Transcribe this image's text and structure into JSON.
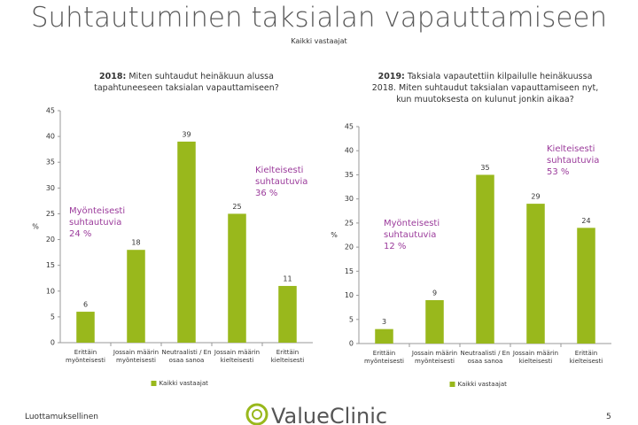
{
  "title": "Suhtautuminen taksialan vapauttamiseen",
  "subtitle": "Kaikki vastaajat",
  "footer": {
    "left": "Luottamuksellinen",
    "logo": "ValueClinic",
    "page": "5"
  },
  "chart_data": [
    {
      "type": "bar",
      "title_lead": "2018:",
      "title": "Miten suhtaudut heinäkuun alussa tapahtuneeseen taksialan vapauttamiseen?",
      "y_label": "%",
      "categories": [
        "Erittäin myönteisesti",
        "Jossain määrin myönteisesti",
        "Neutraalisti / En osaa sanoa",
        "Jossain määrin kielteisesti",
        "Erittäin kielteisesti"
      ],
      "series": [
        {
          "name": "Kaikki vastaajat",
          "color": "#99b81c",
          "values": [
            6,
            18,
            39,
            25,
            11
          ]
        }
      ],
      "ylim": [
        0,
        45
      ],
      "yticks": [
        0,
        5,
        10,
        15,
        20,
        25,
        30,
        35,
        40,
        45
      ],
      "annotations": [
        {
          "text": "Myönteisesti suhtautuvia 24 %"
        },
        {
          "text": "Kielteisesti suhtautuvia 36 %"
        }
      ],
      "annotation_color": "#9b3b9b"
    },
    {
      "type": "bar",
      "title_lead": "2019:",
      "title": "Taksiala vapautettiin kilpailulle heinäkuussa 2018. Miten suhtaudut taksialan vapauttamiseen nyt, kun muutoksesta on kulunut jonkin aikaa?",
      "y_label": "%",
      "categories": [
        "Erittäin myönteisesti",
        "Jossain määrin myönteisesti",
        "Neutraalisti / En osaa sanoa",
        "Jossain määrin kielteisesti",
        "Erittäin kielteisesti"
      ],
      "series": [
        {
          "name": "Kaikki vastaajat",
          "color": "#99b81c",
          "values": [
            3,
            9,
            35,
            29,
            24
          ]
        }
      ],
      "ylim": [
        0,
        45
      ],
      "yticks": [
        0,
        5,
        10,
        15,
        20,
        25,
        30,
        35,
        40,
        45
      ],
      "annotations": [
        {
          "text": "Myönteisesti suhtautuvia 12 %"
        },
        {
          "text": "Kielteisesti suhtautuvia 53 %"
        }
      ],
      "annotation_color": "#9b3b9b"
    }
  ]
}
